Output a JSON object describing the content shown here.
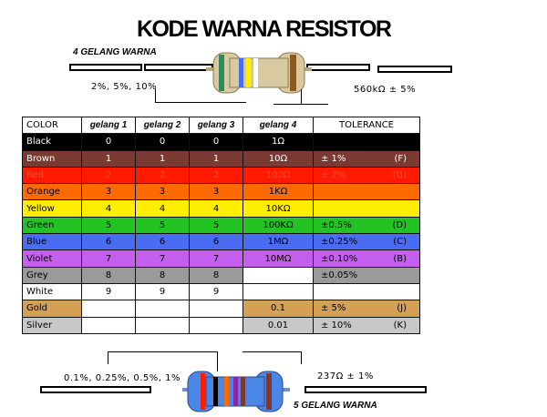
{
  "title": "KODE WARNA RESISTOR",
  "top_label": "4 GELANG WARNA",
  "top_tolerance_note": "2%, 5%, 10%",
  "top_value_note": "560kΩ ± 5%",
  "bottom_tolerance_note": "0.1%, 0.25%, 0.5%, 1%",
  "bottom_value_note": "237Ω ± 1%",
  "bottom_label": "5 GELANG WARNA",
  "headers": [
    "COLOR",
    "gelang 1",
    "gelang 2",
    "gelang 3",
    "gelang 4",
    "TOLERANCE"
  ],
  "rows": [
    {
      "name": "Black",
      "b1": "0",
      "b2": "0",
      "b3": "0",
      "mult": "1Ω",
      "tol": "",
      "code": "",
      "bg": "#000000",
      "fg": "#ffffff",
      "tol_bg": "#000000"
    },
    {
      "name": "Brown",
      "b1": "1",
      "b2": "1",
      "b3": "1",
      "mult": "10Ω",
      "tol": "±   1%",
      "code": "(F)",
      "bg": "#7a3a31",
      "fg": "#ffffff",
      "tol_bg": "#7a3a31"
    },
    {
      "name": "Red",
      "b1": "2",
      "b2": "2",
      "b3": "2",
      "mult": "100Ω",
      "tol": "±   2%",
      "code": "(G)",
      "bg": "#ff1a00",
      "fg": "#ff4d33",
      "tol_bg": "#ff1a00"
    },
    {
      "name": "Orange",
      "b1": "3",
      "b2": "3",
      "b3": "3",
      "mult": "1KΩ",
      "tol": "",
      "code": "",
      "bg": "#ff6a00",
      "fg": "#000000",
      "tol_bg": "#ff6a00"
    },
    {
      "name": "Yellow",
      "b1": "4",
      "b2": "4",
      "b3": "4",
      "mult": "10KΩ",
      "tol": "",
      "code": "",
      "bg": "#ffee00",
      "fg": "#000000",
      "tol_bg": "#ffee00"
    },
    {
      "name": "Green",
      "b1": "5",
      "b2": "5",
      "b3": "5",
      "mult": "100KΩ",
      "tol": "±0.5%",
      "code": "(D)",
      "bg": "#22c322",
      "fg": "#000000",
      "tol_bg": "#22c322"
    },
    {
      "name": "Blue",
      "b1": "6",
      "b2": "6",
      "b3": "6",
      "mult": "1MΩ",
      "tol": "±0.25%",
      "code": "(C)",
      "bg": "#4a6cf0",
      "fg": "#000000",
      "tol_bg": "#4a6cf0"
    },
    {
      "name": "Violet",
      "b1": "7",
      "b2": "7",
      "b3": "7",
      "mult": "10MΩ",
      "tol": "±0.10%",
      "code": "(B)",
      "bg": "#c45ff0",
      "fg": "#000000",
      "tol_bg": "#c45ff0"
    },
    {
      "name": "Grey",
      "b1": "8",
      "b2": "8",
      "b3": "8",
      "mult": "",
      "tol": "±0.05%",
      "code": "",
      "bg": "#9a9a9a",
      "fg": "#000000",
      "tol_bg": "#9a9a9a"
    },
    {
      "name": "White",
      "b1": "9",
      "b2": "9",
      "b3": "9",
      "mult": "",
      "tol": "",
      "code": "",
      "bg": "#ffffff",
      "fg": "#000000",
      "tol_bg": "#ffffff"
    },
    {
      "name": "Gold",
      "b1": "",
      "b2": "",
      "b3": "",
      "mult": "0.1",
      "tol": "±   5%",
      "code": "(J)",
      "bg": "#d4a056",
      "fg": "#000000",
      "tol_bg": "#d4a056",
      "split": true
    },
    {
      "name": "Silver",
      "b1": "",
      "b2": "",
      "b3": "",
      "mult": "0.01",
      "tol": "±  10%",
      "code": "(K)",
      "bg": "#c8c8c8",
      "fg": "#000000",
      "tol_bg": "#c8c8c8",
      "split": true
    }
  ],
  "colors": {
    "resistor_body_top": "#d9c9a0",
    "resistor_body_bottom": "#4a86e8"
  }
}
